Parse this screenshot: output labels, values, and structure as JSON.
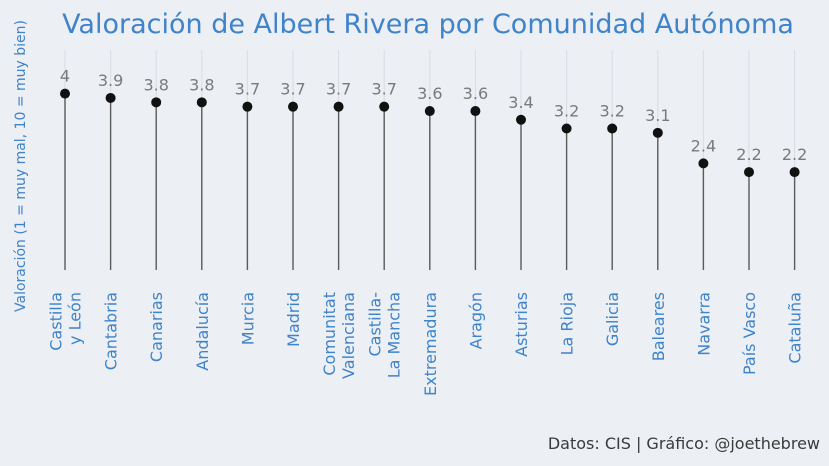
{
  "chart_data": {
    "type": "lollipop",
    "title": "Valoración de Albert Rivera por Comunidad Autónoma",
    "ylabel": "Valoración (1 = muy mal, 10 = muy bien)",
    "caption": "Datos: CIS | Gráfico: @joethebrew",
    "ylim": [
      0,
      4
    ],
    "grid": true,
    "categories": [
      [
        "Castilla",
        "y León"
      ],
      [
        "Cantabria"
      ],
      [
        "Canarias"
      ],
      [
        "Andalucía"
      ],
      [
        "Murcia"
      ],
      [
        "Madrid"
      ],
      [
        "Comunitat",
        "Valenciana"
      ],
      [
        "Castilla-",
        "La Mancha"
      ],
      [
        "Extremadura"
      ],
      [
        "Aragón"
      ],
      [
        "Asturias"
      ],
      [
        "La Rioja"
      ],
      [
        "Galicia"
      ],
      [
        "Baleares"
      ],
      [
        "Navarra"
      ],
      [
        "País Vasco"
      ],
      [
        "Cataluña"
      ]
    ],
    "values": [
      4,
      3.9,
      3.8,
      3.8,
      3.7,
      3.7,
      3.7,
      3.7,
      3.6,
      3.6,
      3.4,
      3.2,
      3.2,
      3.1,
      2.4,
      2.2,
      2.2
    ],
    "value_labels": [
      "4",
      "3.9",
      "3.8",
      "3.8",
      "3.7",
      "3.7",
      "3.7",
      "3.7",
      "3.6",
      "3.6",
      "3.4",
      "3.2",
      "3.2",
      "3.1",
      "2.4",
      "2.2",
      "2.2"
    ],
    "colors": {
      "background": "#eceff4",
      "accent": "#3f83c9",
      "stem": "#5a5a5a",
      "point": "#111111",
      "value_label": "#7a7a7a"
    }
  }
}
